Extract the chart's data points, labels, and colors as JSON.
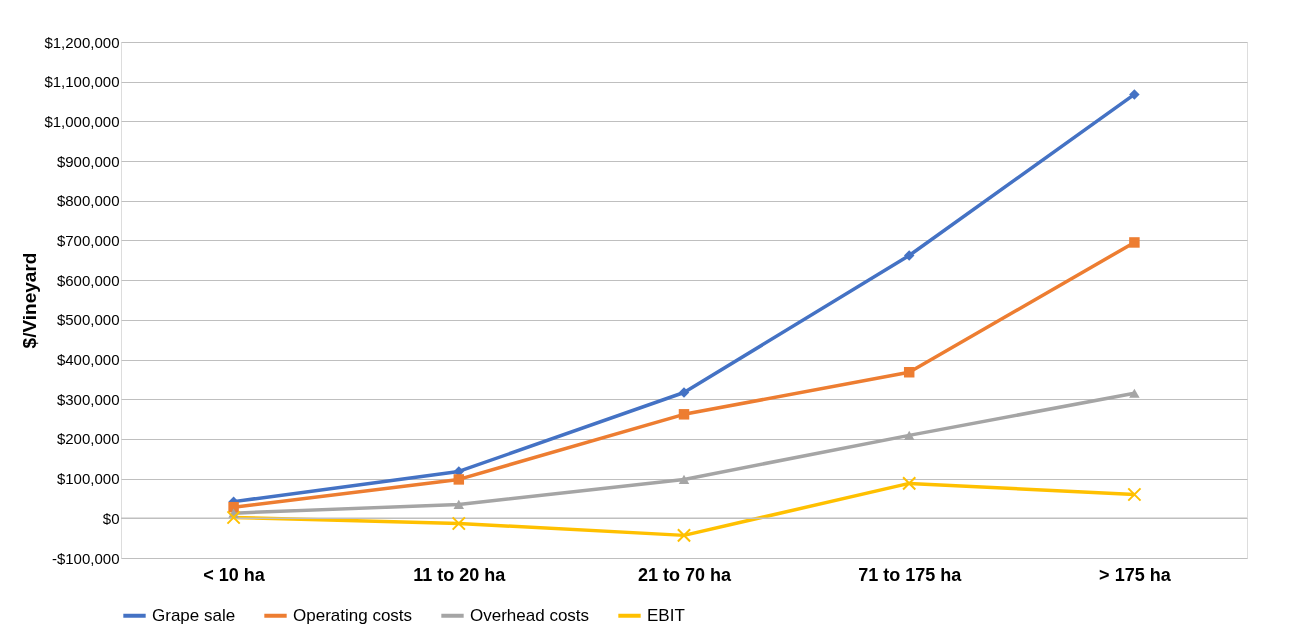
{
  "chart_data": {
    "type": "line",
    "ylabel": "$/Vineyard",
    "categories": [
      "< 10 ha",
      "11 to 20 ha",
      "21 to 70 ha",
      "71 to 175 ha",
      "> 175 ha"
    ],
    "series": [
      {
        "name": "Grape sale",
        "color": "#4472c4",
        "marker": "diamond",
        "values": [
          42000,
          118000,
          317000,
          662000,
          1068000
        ]
      },
      {
        "name": "Operating costs",
        "color": "#ed7d31",
        "marker": "square",
        "values": [
          28000,
          98000,
          262000,
          368000,
          695000
        ]
      },
      {
        "name": "Overhead costs",
        "color": "#a5a5a5",
        "marker": "triangle",
        "values": [
          13000,
          35000,
          98000,
          209000,
          315000
        ]
      },
      {
        "name": "EBIT",
        "color": "#ffc000",
        "marker": "cross",
        "values": [
          2000,
          -13000,
          -43000,
          88000,
          60000
        ]
      }
    ],
    "ylim": [
      -100000,
      1200000
    ],
    "yticks": [
      {
        "value": -100000,
        "label": "-$100,000"
      },
      {
        "value": 0,
        "label": "$0"
      },
      {
        "value": 100000,
        "label": "$100,000"
      },
      {
        "value": 200000,
        "label": "$200,000"
      },
      {
        "value": 300000,
        "label": "$300,000"
      },
      {
        "value": 400000,
        "label": "$400,000"
      },
      {
        "value": 500000,
        "label": "$500,000"
      },
      {
        "value": 600000,
        "label": "$600,000"
      },
      {
        "value": 700000,
        "label": "$700,000"
      },
      {
        "value": 800000,
        "label": "$800,000"
      },
      {
        "value": 900000,
        "label": "$900,000"
      },
      {
        "value": 1000000,
        "label": "$1,000,000"
      },
      {
        "value": 1100000,
        "label": "$1,100,000"
      },
      {
        "value": 1200000,
        "label": "$1,200,000"
      }
    ],
    "grid": "y",
    "legend": "bottom",
    "line_style": "solid"
  }
}
